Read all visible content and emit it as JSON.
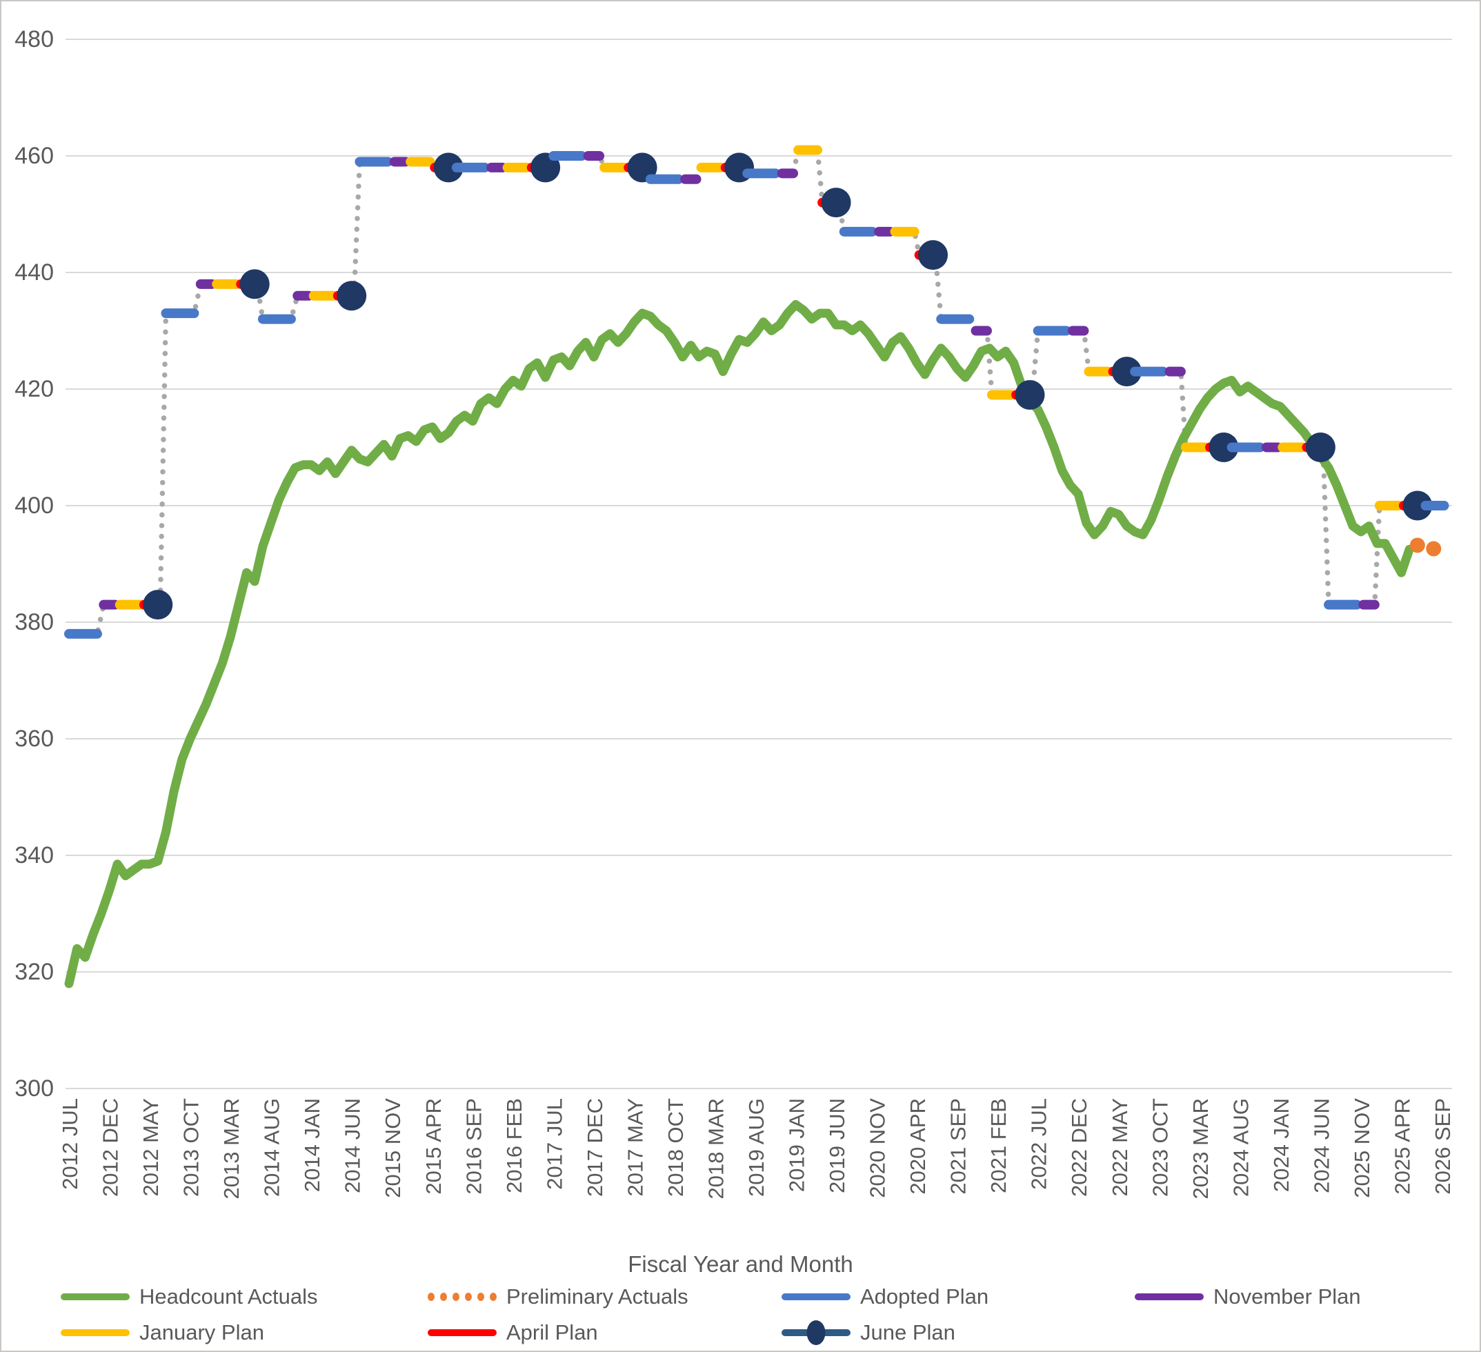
{
  "axis_title": "Fiscal Year and Month",
  "colors": {
    "actuals_green": "#70AD47",
    "preliminary_orange": "#ED7D31",
    "adopted_blue": "#4878C8",
    "november_purple": "#7030A0",
    "january_gold": "#FFC000",
    "april_red": "#FF0000",
    "june_line_blue": "#2E5B84",
    "june_marker_navy": "#1F3864",
    "connector_gray": "#A8A8A8",
    "gridline_gray": "#D9D9D9",
    "axis_text_gray": "#595959"
  },
  "y_axis": {
    "ticks": [
      480,
      460,
      440,
      420,
      400,
      380,
      360,
      340,
      320,
      300
    ]
  },
  "x_axis": {
    "tick_labels": [
      "2012 JUL",
      "2012 DEC",
      "2012 MAY",
      "2013 OCT",
      "2013 MAR",
      "2014 AUG",
      "2014 JAN",
      "2014 JUN",
      "2015 NOV",
      "2015 APR",
      "2016 SEP",
      "2016 FEB",
      "2017 JUL",
      "2017 DEC",
      "2017 MAY",
      "2018 OCT",
      "2018 MAR",
      "2019 AUG",
      "2019 JAN",
      "2019 JUN",
      "2020 NOV",
      "2020 APR",
      "2021 SEP",
      "2021 FEB",
      "2022 JUL",
      "2022 DEC",
      "2022 MAY",
      "2023 OCT",
      "2023 MAR",
      "2024 AUG",
      "2024 JAN",
      "2024 JUN",
      "2025 NOV",
      "2025 APR",
      "2026 SEP"
    ],
    "months_per_tick": 5,
    "total_months": 171
  },
  "legend": {
    "rows": [
      [
        {
          "label": "Headcount Actuals",
          "swatch": "solid",
          "color": "#70AD47"
        },
        {
          "label": "Preliminary Actuals",
          "swatch": "dotted",
          "color": "#ED7D31"
        },
        {
          "label": "Adopted Plan",
          "swatch": "solid",
          "color": "#4878C8"
        },
        {
          "label": "November Plan",
          "swatch": "solid",
          "color": "#7030A0"
        }
      ],
      [
        {
          "label": "January Plan",
          "swatch": "solid",
          "color": "#FFC000"
        },
        {
          "label": "April Plan",
          "swatch": "solid",
          "color": "#FF0000"
        },
        {
          "label": "June Plan",
          "swatch": "june",
          "color": "#2E5B84",
          "marker_color": "#1F3864"
        }
      ]
    ]
  },
  "chart_data": {
    "type": "line",
    "title": "",
    "xlabel": "Fiscal Year and Month",
    "ylabel": "",
    "ylim": [
      300,
      480
    ],
    "x_start_label": "2012 JUL",
    "grid": true,
    "series": [
      {
        "name": "Headcount Actuals",
        "style": "solid-line",
        "color": "#70AD47",
        "start_month_index": 0,
        "monthly_values": [
          318,
          324,
          322.5,
          326.5,
          330,
          334,
          338.5,
          336.5,
          337.5,
          338.5,
          338.5,
          339,
          344,
          351,
          356.5,
          360,
          363,
          366,
          369.5,
          373,
          377.5,
          383,
          388.5,
          387,
          393,
          397,
          401,
          404,
          406.5,
          407,
          407,
          406,
          407.5,
          405.5,
          407.5,
          409.5,
          408,
          407.5,
          409,
          410.5,
          408.5,
          411.5,
          412,
          411,
          413,
          413.5,
          411.5,
          412.5,
          414.5,
          415.5,
          414.5,
          417.5,
          418.5,
          417.5,
          420,
          421.5,
          420.5,
          423.5,
          424.5,
          422,
          425,
          425.5,
          424,
          426.5,
          428,
          425.5,
          428.5,
          429.5,
          428,
          429.5,
          431.5,
          433,
          432.5,
          431,
          430,
          428,
          425.5,
          427.5,
          425.5,
          426.5,
          426,
          423,
          426,
          428.5,
          428,
          429.5,
          431.5,
          430,
          431,
          433,
          434.5,
          433.5,
          432,
          433,
          433,
          431,
          431,
          430,
          431,
          429.5,
          427.5,
          425.5,
          428,
          429,
          427,
          424.5,
          422.5,
          425,
          427,
          425.5,
          423.5,
          422,
          424,
          426.5,
          427,
          425.5,
          426.5,
          424.5,
          420.5,
          418,
          416.5,
          413.5,
          410,
          406,
          403.5,
          402,
          397,
          395,
          396.5,
          399,
          398.5,
          396.5,
          395.5,
          395,
          397.5,
          401,
          405,
          408.5,
          411.5,
          414,
          416.5,
          418.5,
          420,
          421,
          421.5,
          419.5,
          420.5,
          419.5,
          418.5,
          417.5,
          417,
          415.5,
          414,
          412.5,
          410.5,
          408.5,
          406.5,
          403.5,
          400,
          396.5,
          395.5,
          396.5,
          393.5,
          393.5,
          391,
          388.5,
          392.5
        ]
      },
      {
        "name": "Preliminary Actuals",
        "style": "dotted",
        "color": "#ED7D31",
        "points": [
          {
            "month_index": 167,
            "value": 393.2
          },
          {
            "month_index": 169,
            "value": 392.6
          }
        ]
      }
    ],
    "plans": [
      {
        "fiscal_year": "FY2012",
        "start_month_index": 0,
        "adopted": 378,
        "november": 383,
        "january": 383,
        "april": 383,
        "june": 383
      },
      {
        "fiscal_year": "FY2013",
        "start_month_index": 12,
        "adopted": 433,
        "november": 438,
        "january": 438,
        "april": 438,
        "june": 438
      },
      {
        "fiscal_year": "FY2014",
        "start_month_index": 24,
        "adopted": 432,
        "november": 436,
        "january": 436,
        "april": 436,
        "june": 436
      },
      {
        "fiscal_year": "FY2015",
        "start_month_index": 36,
        "adopted": 459,
        "november": 459,
        "january": 459,
        "april": 458,
        "june": 458
      },
      {
        "fiscal_year": "FY2016",
        "start_month_index": 48,
        "adopted": 458,
        "november": 458,
        "january": 458,
        "april": 458,
        "june": 458
      },
      {
        "fiscal_year": "FY2017",
        "start_month_index": 60,
        "adopted": 460,
        "november": 460,
        "january": 458,
        "april": 458,
        "june": 458
      },
      {
        "fiscal_year": "FY2018",
        "start_month_index": 72,
        "adopted": 456,
        "november": 456,
        "january": 458,
        "april": 458,
        "june": 458
      },
      {
        "fiscal_year": "FY2019",
        "start_month_index": 84,
        "adopted": 457,
        "november": 457,
        "january": 461,
        "april": 452,
        "june": 452
      },
      {
        "fiscal_year": "FY2020",
        "start_month_index": 96,
        "adopted": 447,
        "november": 447,
        "january": 447,
        "april": 443,
        "june": 443
      },
      {
        "fiscal_year": "FY2021",
        "start_month_index": 108,
        "adopted": 432,
        "november": 430,
        "january": 419,
        "april": 419,
        "june": 419
      },
      {
        "fiscal_year": "FY2022",
        "start_month_index": 120,
        "adopted": 430,
        "november": 430,
        "january": 423,
        "april": 423,
        "june": 423
      },
      {
        "fiscal_year": "FY2023",
        "start_month_index": 132,
        "adopted": 423,
        "november": 423,
        "january": 410,
        "april": 410,
        "june": 410
      },
      {
        "fiscal_year": "FY2024",
        "start_month_index": 144,
        "adopted": 410,
        "november": 410,
        "january": 410,
        "april": 410,
        "june": 410
      },
      {
        "fiscal_year": "FY2025",
        "start_month_index": 156,
        "adopted": 383,
        "november": 383,
        "january": 400,
        "april": 400,
        "june": 400
      },
      {
        "fiscal_year": "FY2026",
        "start_month_index": 168,
        "adopted": 400,
        "november": null,
        "january": null,
        "april": null,
        "june": null
      }
    ],
    "legend_position": "bottom"
  }
}
